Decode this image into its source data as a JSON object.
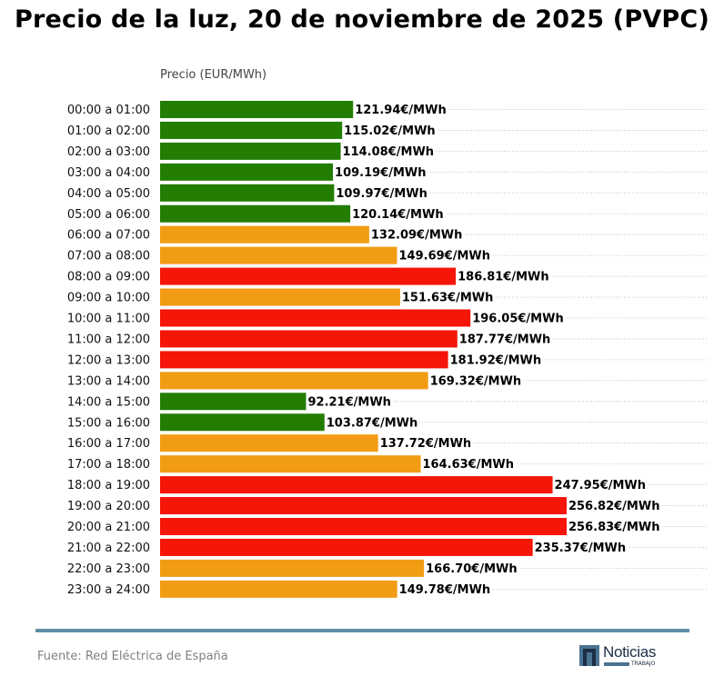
{
  "chart_data": {
    "type": "bar",
    "orientation": "horizontal",
    "title": "Precio de la luz, 20 de noviembre de 2025 (PVPC)",
    "xlabel": "Precio (EUR/MWh)",
    "ylabel": "",
    "value_suffix": "€/MWh",
    "grid": "dotted horizontal row guides",
    "categories": [
      "00:00 a 01:00",
      "01:00 a 02:00",
      "02:00 a 03:00",
      "03:00 a 04:00",
      "04:00 a 05:00",
      "05:00 a 06:00",
      "06:00 a 07:00",
      "07:00 a 08:00",
      "08:00 a 09:00",
      "09:00 a 10:00",
      "10:00 a 11:00",
      "11:00 a 12:00",
      "12:00 a 13:00",
      "13:00 a 14:00",
      "14:00 a 15:00",
      "15:00 a 16:00",
      "16:00 a 17:00",
      "17:00 a 18:00",
      "18:00 a 19:00",
      "19:00 a 20:00",
      "20:00 a 21:00",
      "21:00 a 22:00",
      "22:00 a 23:00",
      "23:00 a 24:00"
    ],
    "values": [
      121.94,
      115.02,
      114.08,
      109.19,
      109.97,
      120.14,
      132.09,
      149.69,
      186.81,
      151.63,
      196.05,
      187.77,
      181.92,
      169.32,
      92.21,
      103.87,
      137.72,
      164.63,
      247.95,
      256.82,
      256.83,
      235.37,
      166.7,
      149.78
    ],
    "labels": [
      "121.94€/MWh",
      "115.02€/MWh",
      "114.08€/MWh",
      "109.19€/MWh",
      "109.97€/MWh",
      "120.14€/MWh",
      "132.09€/MWh",
      "149.69€/MWh",
      "186.81€/MWh",
      "151.63€/MWh",
      "196.05€/MWh",
      "187.77€/MWh",
      "181.92€/MWh",
      "169.32€/MWh",
      "92.21€/MWh",
      "103.87€/MWh",
      "137.72€/MWh",
      "164.63€/MWh",
      "247.95€/MWh",
      "256.82€/MWh",
      "256.83€/MWh",
      "235.37€/MWh",
      "166.70€/MWh",
      "149.78€/MWh"
    ],
    "levels": [
      "low",
      "low",
      "low",
      "low",
      "low",
      "low",
      "mid",
      "mid",
      "high",
      "mid",
      "high",
      "high",
      "high",
      "mid",
      "low",
      "low",
      "mid",
      "mid",
      "high",
      "high",
      "high",
      "high",
      "mid",
      "mid"
    ],
    "colors": {
      "low": "#237d03",
      "mid": "#f29c14",
      "high": "#f51509"
    },
    "xlim": [
      0,
      256.83
    ]
  },
  "footer": {
    "source": "Fuente: Red Eléctrica de España",
    "logo_word": "Noticias",
    "logo_sub": "TRABAJO"
  }
}
